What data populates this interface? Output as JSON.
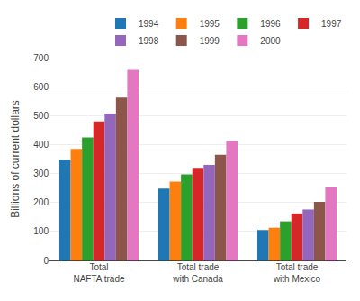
{
  "chart_data": {
    "type": "bar",
    "categories": [
      "Total\nNAFTA trade",
      "Total trade\nwith Canada",
      "Total trade\nwith Mexico"
    ],
    "series": [
      {
        "name": "1994",
        "values": [
          348,
          248,
          105
        ]
      },
      {
        "name": "1995",
        "values": [
          385,
          272,
          113
        ]
      },
      {
        "name": "1996",
        "values": [
          425,
          297,
          135
        ]
      },
      {
        "name": "1997",
        "values": [
          480,
          320,
          162
        ]
      },
      {
        "name": "1998",
        "values": [
          507,
          330,
          176
        ]
      },
      {
        "name": "1999",
        "values": [
          562,
          365,
          202
        ]
      },
      {
        "name": "2000",
        "values": [
          658,
          412,
          252
        ]
      }
    ],
    "ylabel": "Billions of current dollars",
    "ylim": [
      0,
      700
    ],
    "yticks": [
      0,
      100,
      200,
      300,
      400,
      500,
      600,
      700
    ],
    "grid": true,
    "legend": "upper right"
  }
}
